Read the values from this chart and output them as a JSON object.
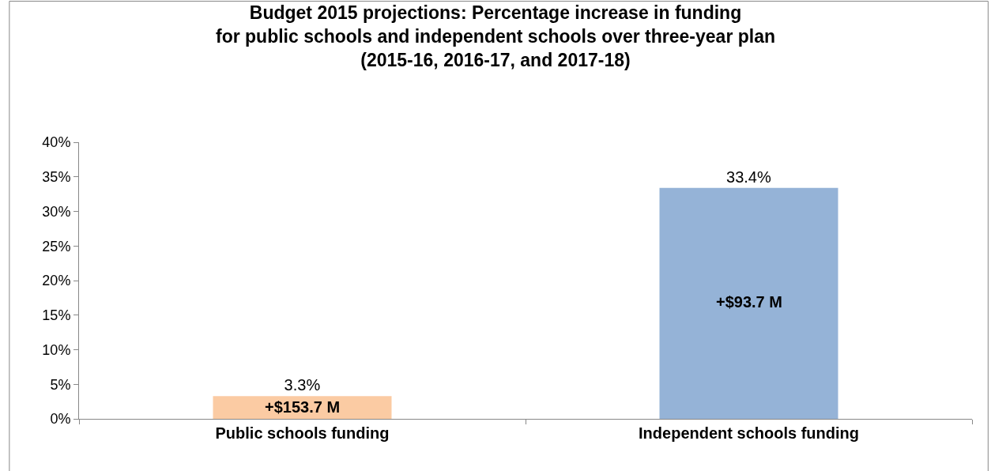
{
  "chart_data": {
    "type": "bar",
    "title": "Budget 2015 projections: Percentage increase in funding\nfor public schools and independent schools over three-year plan\n(2015-16, 2016-17, and 2017-18)",
    "categories": [
      "Public schools funding",
      "Independent schools funding"
    ],
    "values": [
      3.3,
      33.4
    ],
    "colors": [
      "#fbcba3",
      "#95b3d7"
    ],
    "value_labels": [
      "3.3%",
      "33.4%"
    ],
    "annotations": [
      "+$153.7 M",
      "+$93.7 M"
    ],
    "ylim": [
      0,
      40
    ],
    "yticks": [
      {
        "value": 0,
        "label": "0%"
      },
      {
        "value": 5,
        "label": "5%"
      },
      {
        "value": 10,
        "label": "10%"
      },
      {
        "value": 15,
        "label": "15%"
      },
      {
        "value": 20,
        "label": "20%"
      },
      {
        "value": 25,
        "label": "25%"
      },
      {
        "value": 30,
        "label": "30%"
      },
      {
        "value": 35,
        "label": "35%"
      },
      {
        "value": 40,
        "label": "40%"
      }
    ]
  }
}
